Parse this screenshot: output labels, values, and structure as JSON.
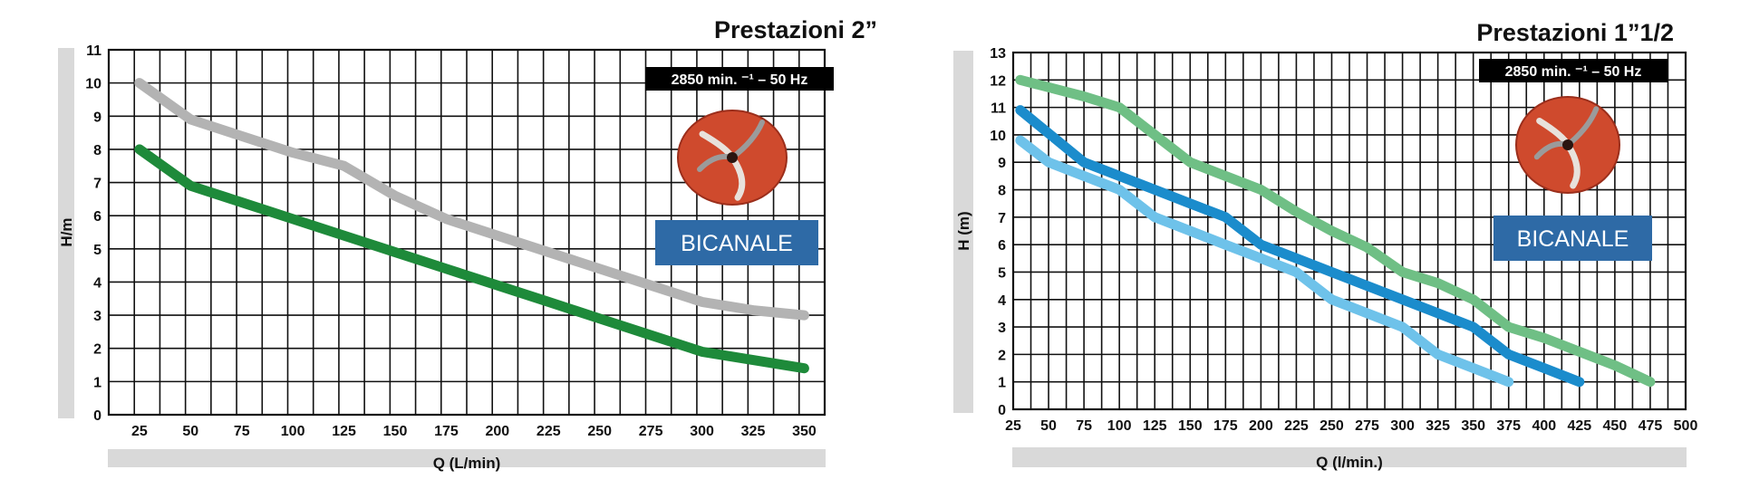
{
  "colors": {
    "background": "#ffffff",
    "grid": "#111111",
    "axis_band": "#d9d9d9",
    "badge_fill": "#2e6aa6",
    "spec_fill": "#000000",
    "impeller": "#cf4a2d"
  },
  "chart_data": [
    {
      "type": "line",
      "title": "Prestazioni 2”",
      "xlabel": "Q (L/min)",
      "ylabel": "H/m",
      "spec_label": "2850 min. ⁻¹ – 50 Hz",
      "badge_label": "BICANALE",
      "x_ticks": [
        25,
        50,
        75,
        100,
        125,
        150,
        175,
        200,
        225,
        250,
        275,
        300,
        325,
        350
      ],
      "y_ticks": [
        0,
        1,
        2,
        3,
        4,
        5,
        6,
        7,
        8,
        9,
        10,
        11
      ],
      "xlim": [
        10,
        360
      ],
      "ylim": [
        0,
        11
      ],
      "grid": true,
      "series": [
        {
          "color": "#b3b3b3",
          "x": [
            25,
            50,
            75,
            100,
            125,
            150,
            175,
            200,
            225,
            250,
            275,
            300,
            325,
            350
          ],
          "y": [
            10,
            8.9,
            8.4,
            7.9,
            7.5,
            6.6,
            5.9,
            5.4,
            4.9,
            4.4,
            3.9,
            3.4,
            3.15,
            3.0
          ]
        },
        {
          "color": "#1e8a3a",
          "x": [
            25,
            50,
            75,
            100,
            125,
            150,
            175,
            200,
            225,
            250,
            275,
            300,
            325,
            350
          ],
          "y": [
            8,
            6.9,
            6.4,
            5.9,
            5.4,
            4.9,
            4.4,
            3.9,
            3.4,
            2.9,
            2.4,
            1.9,
            1.65,
            1.4
          ]
        }
      ]
    },
    {
      "type": "line",
      "title": "Prestazioni 1”1/2",
      "xlabel": "Q (l/min.)",
      "ylabel": "H (m)",
      "spec_label": "2850 min. ⁻¹ – 50 Hz",
      "badge_label": "BICANALE",
      "x_ticks": [
        25,
        50,
        75,
        100,
        125,
        150,
        175,
        200,
        225,
        250,
        275,
        300,
        325,
        350,
        375,
        400,
        425,
        450,
        475,
        500
      ],
      "y_ticks": [
        0,
        1,
        2,
        3,
        4,
        5,
        6,
        7,
        8,
        9,
        10,
        11,
        12,
        13
      ],
      "xlim": [
        25,
        500
      ],
      "ylim": [
        0,
        13
      ],
      "grid": true,
      "series": [
        {
          "color": "#6fbf85",
          "x": [
            30,
            75,
            100,
            125,
            150,
            175,
            200,
            225,
            250,
            275,
            300,
            325,
            350,
            375,
            400,
            425,
            450,
            475
          ],
          "y": [
            12,
            11.4,
            11,
            10,
            9,
            8.5,
            8,
            7.2,
            6.5,
            5.9,
            5,
            4.6,
            4,
            3,
            2.6,
            2.1,
            1.6,
            1
          ]
        },
        {
          "color": "#1b8ccc",
          "x": [
            30,
            75,
            100,
            125,
            150,
            175,
            200,
            225,
            250,
            275,
            300,
            325,
            350,
            375,
            400,
            425
          ],
          "y": [
            10.9,
            9,
            8.5,
            8,
            7.5,
            7,
            6,
            5.5,
            5,
            4.5,
            4,
            3.5,
            3,
            2,
            1.5,
            1
          ]
        },
        {
          "color": "#6ec2ea",
          "x": [
            30,
            50,
            75,
            100,
            125,
            150,
            175,
            200,
            225,
            250,
            275,
            300,
            325,
            350,
            375
          ],
          "y": [
            9.8,
            9,
            8.5,
            8,
            7,
            6.5,
            6,
            5.5,
            5,
            4,
            3.5,
            3,
            2,
            1.5,
            1
          ]
        }
      ]
    }
  ]
}
